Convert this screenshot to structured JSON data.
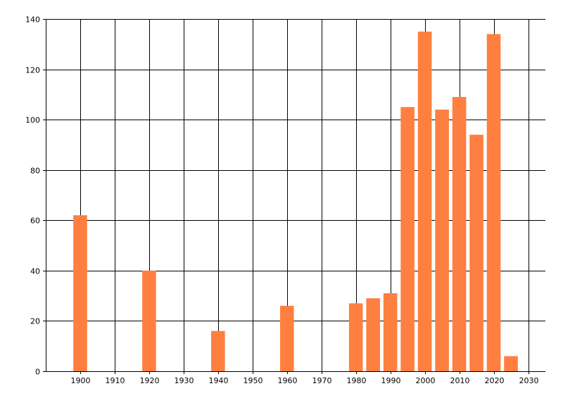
{
  "chart_data": {
    "type": "bar",
    "x": [
      1900,
      1920,
      1940,
      1960,
      1980,
      1985,
      1990,
      1995,
      2000,
      2005,
      2010,
      2015,
      2020,
      2025
    ],
    "values": [
      62,
      40,
      16,
      26,
      27,
      29,
      31,
      105,
      135,
      104,
      109,
      94,
      134,
      6
    ],
    "bar_width_years": 4,
    "xlim": [
      1890,
      2035
    ],
    "ylim": [
      0,
      140
    ],
    "x_ticks": [
      1900,
      1910,
      1920,
      1930,
      1940,
      1950,
      1960,
      1970,
      1980,
      1990,
      2000,
      2010,
      2020,
      2030
    ],
    "y_ticks": [
      0,
      20,
      40,
      60,
      80,
      100,
      120,
      140
    ],
    "grid": true,
    "bar_color": "#ff7f40",
    "title": "",
    "xlabel": "",
    "ylabel": ""
  }
}
